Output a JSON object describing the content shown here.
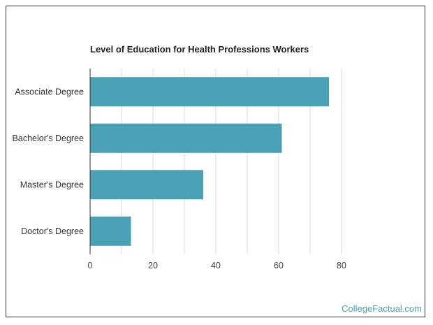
{
  "brand": "CollegeFactual.com",
  "colors": {
    "bar": "#4aa0b4",
    "grid": "#d9d9d9",
    "axis": "#333333",
    "brand": "#4aa0b4"
  },
  "chart_data": {
    "type": "bar",
    "orientation": "horizontal",
    "title": "Level of Education for Health Professions Workers",
    "categories": [
      "Associate Degree",
      "Bachelor's Degree",
      "Master's Degree",
      "Doctor's Degree"
    ],
    "values": [
      76,
      61,
      36,
      13
    ],
    "xlim": [
      0,
      80
    ],
    "xticks": [
      0,
      20,
      40,
      60,
      80
    ],
    "grid": true
  }
}
